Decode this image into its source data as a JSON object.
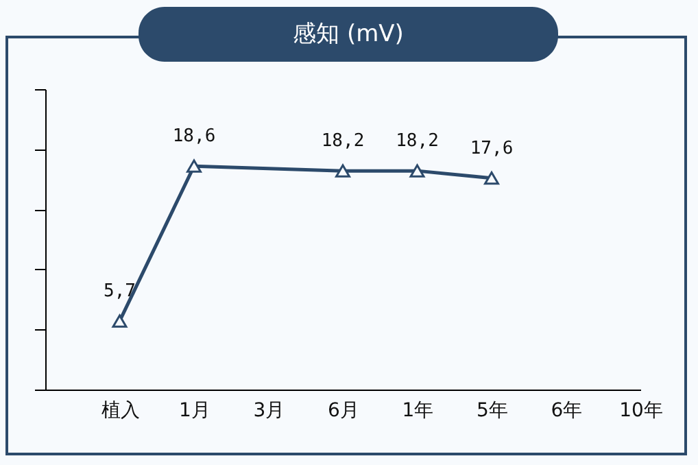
{
  "chart_data": {
    "type": "line",
    "title": "感知 (mV)",
    "categories": [
      "植入",
      "1月",
      "3月",
      "6月",
      "1年",
      "5年",
      "6年",
      "10年"
    ],
    "series": [
      {
        "color": "#2c4a6b",
        "values": [
          5.7,
          18.6,
          null,
          18.2,
          18.2,
          17.6,
          null,
          null
        ],
        "value_labels": [
          "5,7",
          "18,6",
          null,
          "18,2",
          "18,2",
          "17,6",
          null,
          null
        ]
      }
    ],
    "ylim": [
      0,
      25
    ],
    "yticks": [
      {
        "value": 0,
        "label": null
      },
      {
        "value": 5,
        "label": null
      },
      {
        "value": 10,
        "label": null
      },
      {
        "value": 15,
        "label": null
      },
      {
        "value": 20,
        "label": null
      },
      {
        "value": 25,
        "label": null
      }
    ],
    "tick_labels": "x",
    "grid": false,
    "legend": false,
    "marker": "triangle",
    "line_style": "solid"
  }
}
